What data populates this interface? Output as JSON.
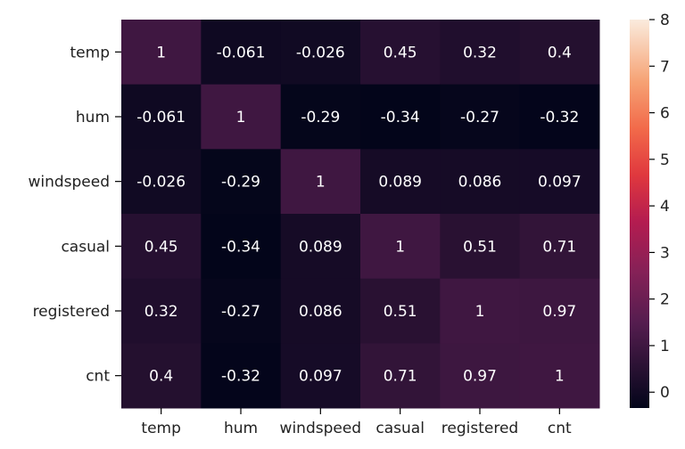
{
  "chart_data": {
    "type": "heatmap",
    "rows": [
      "temp",
      "hum",
      "windspeed",
      "casual",
      "registered",
      "cnt"
    ],
    "columns": [
      "temp",
      "hum",
      "windspeed",
      "casual",
      "registered",
      "cnt"
    ],
    "values": [
      [
        1,
        -0.061,
        -0.026,
        0.45,
        0.32,
        0.4
      ],
      [
        -0.061,
        1,
        -0.29,
        -0.34,
        -0.27,
        -0.32
      ],
      [
        -0.026,
        -0.29,
        1,
        0.089,
        0.086,
        0.097
      ],
      [
        0.45,
        -0.34,
        0.089,
        1,
        0.51,
        0.71
      ],
      [
        0.32,
        -0.27,
        0.086,
        0.51,
        1,
        0.97
      ],
      [
        0.4,
        -0.32,
        0.097,
        0.71,
        0.97,
        1
      ]
    ],
    "annotations": [
      [
        "1",
        "-0.061",
        "-0.026",
        "0.45",
        "0.32",
        "0.4"
      ],
      [
        "-0.061",
        "1",
        "-0.29",
        "-0.34",
        "-0.27",
        "-0.32"
      ],
      [
        "-0.026",
        "-0.29",
        "1",
        "0.089",
        "0.086",
        "0.097"
      ],
      [
        "0.45",
        "-0.34",
        "0.089",
        "1",
        "0.51",
        "0.71"
      ],
      [
        "0.32",
        "-0.27",
        "0.086",
        "0.51",
        "1",
        "0.97"
      ],
      [
        "0.4",
        "-0.32",
        "0.097",
        "0.71",
        "0.97",
        "1"
      ]
    ],
    "colorbar": {
      "range": [
        -0.34,
        8
      ],
      "ticks": [
        0,
        1,
        2,
        3,
        4,
        5,
        6,
        7,
        8
      ],
      "colormap": "rocket"
    },
    "annotation_color": "#ffffff",
    "grid": false
  }
}
